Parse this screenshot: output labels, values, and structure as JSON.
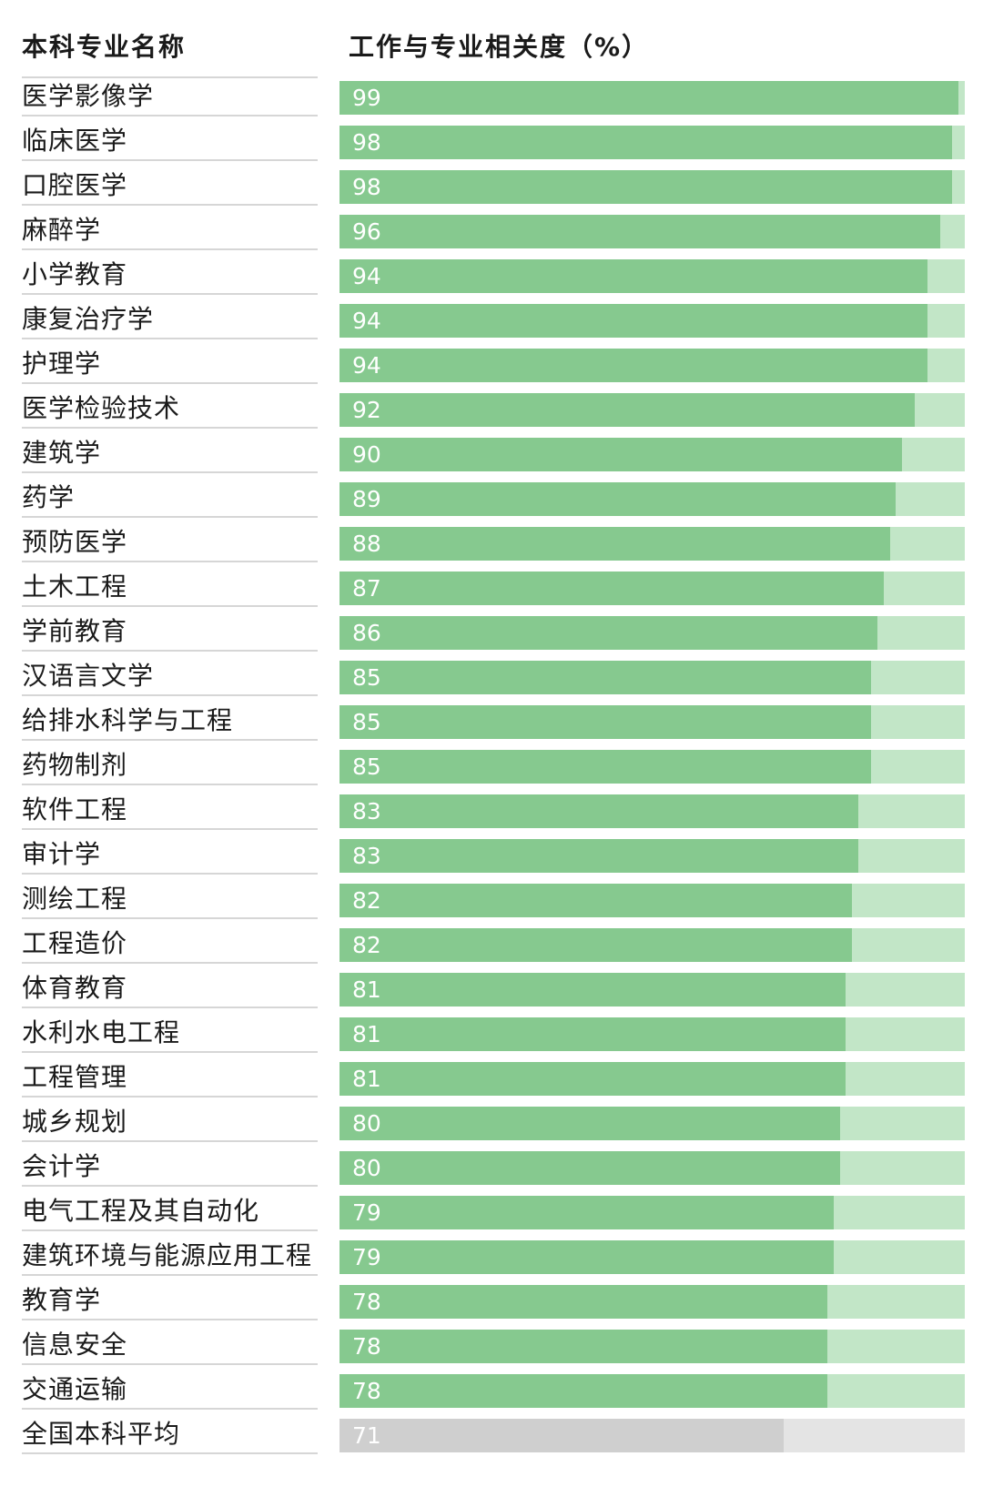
{
  "header": {
    "left": "本科专业名称",
    "right": "工作与专业相关度（%）"
  },
  "colors": {
    "bar_fill": "#86c98f",
    "bar_track": "#c2e6c7",
    "avg_fill": "#cfcfcf",
    "avg_track": "#e4e4e4"
  },
  "chart_data": {
    "type": "bar",
    "orientation": "horizontal",
    "xlim": [
      0,
      100
    ],
    "categories": [
      "医学影像学",
      "临床医学",
      "口腔医学",
      "麻醉学",
      "小学教育",
      "康复治疗学",
      "护理学",
      "医学检验技术",
      "建筑学",
      "药学",
      "预防医学",
      "土木工程",
      "学前教育",
      "汉语言文学",
      "给排水科学与工程",
      "药物制剂",
      "软件工程",
      "审计学",
      "测绘工程",
      "工程造价",
      "体育教育",
      "水利水电工程",
      "工程管理",
      "城乡规划",
      "会计学",
      "电气工程及其自动化",
      "建筑环境与能源应用工程",
      "教育学",
      "信息安全",
      "交通运输",
      "全国本科平均"
    ],
    "values": [
      99,
      98,
      98,
      96,
      94,
      94,
      94,
      92,
      90,
      89,
      88,
      87,
      86,
      85,
      85,
      85,
      83,
      83,
      82,
      82,
      81,
      81,
      81,
      80,
      80,
      79,
      79,
      78,
      78,
      78,
      71
    ],
    "value_labels": [
      "99",
      "98",
      "98",
      "96",
      "94",
      "94",
      "94",
      "92",
      "90",
      "89",
      "88",
      "87",
      "86",
      "85",
      "85",
      "85",
      "83",
      "83",
      "82",
      "82",
      "81",
      "81",
      "81",
      "80",
      "80",
      "79",
      "79",
      "78",
      "78",
      "78",
      "71"
    ],
    "highlight": "全国本科平均"
  }
}
